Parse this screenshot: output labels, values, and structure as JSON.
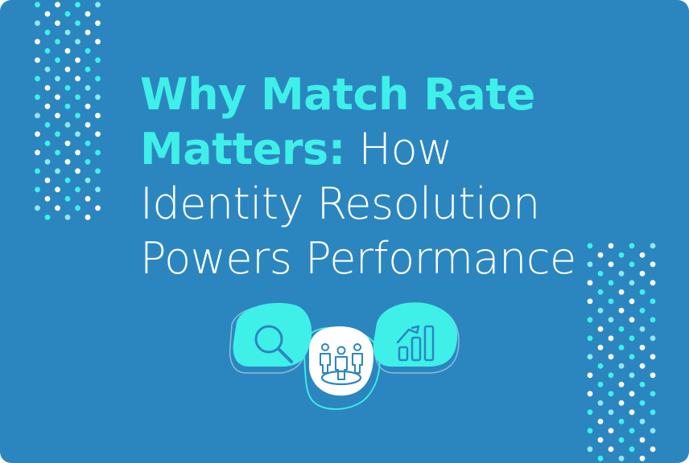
{
  "headline": {
    "bold": "Why Match Rate Matters:",
    "light": "How Identity Resolution Powers Performance"
  },
  "icons": [
    {
      "name": "magnifier-icon"
    },
    {
      "name": "people-icon"
    },
    {
      "name": "growth-chart-icon"
    }
  ],
  "colors": {
    "background": "#2b86c0",
    "accent": "#3ff0e8",
    "text": "#ffffff",
    "icon_stroke": "#2b86c0"
  }
}
